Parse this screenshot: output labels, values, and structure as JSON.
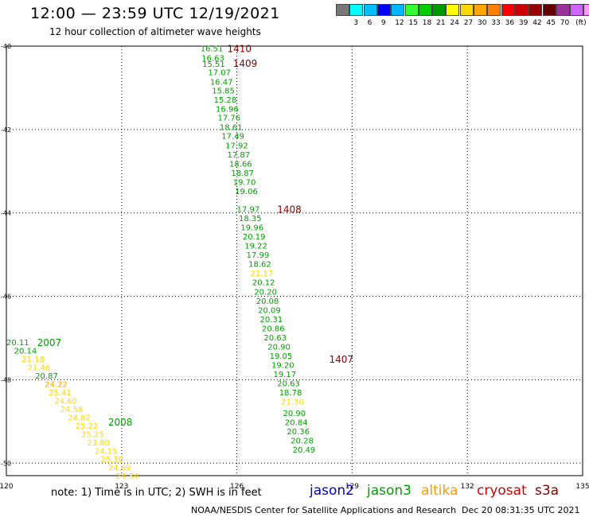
{
  "header": {
    "title": "12:00 — 23:59 UTC 12/19/2021",
    "subtitle": "12 hour collection of altimeter wave heights"
  },
  "colorbar": {
    "unit": "(ft)",
    "colors": [
      "#777777",
      "#00ffff",
      "#00bfff",
      "#0000ff",
      "#00b7ff",
      "#33ff33",
      "#00cc00",
      "#009900",
      "#ffff00",
      "#ffd700",
      "#ffa500",
      "#ff7f00",
      "#ff0000",
      "#cc0000",
      "#990000",
      "#660000",
      "#993399",
      "#cc66ff",
      "#ff99ff",
      "#000000"
    ],
    "labels": [
      "3",
      "6",
      "9",
      "12",
      "15",
      "18",
      "21",
      "24",
      "27",
      "30",
      "33",
      "36",
      "39",
      "42",
      "45",
      "70"
    ]
  },
  "footer": {
    "note": "note: 1) Time is in UTC; 2) SWH is in feet",
    "credit": "NOAA/NESDIS Center for Satellite Applications and Research",
    "timestamp": "Dec 20 08:31:35 UTC 2021"
  },
  "satellites": [
    {
      "name": "jason2",
      "color": "#0000cc"
    },
    {
      "name": "jason3",
      "color": "#00a000"
    },
    {
      "name": "altika",
      "color": "#ff9900"
    },
    {
      "name": "cryosat",
      "color": "#cc0000"
    },
    {
      "name": "s3a",
      "color": "#880000"
    }
  ],
  "chart_data": {
    "type": "scatter",
    "x_ticks": [
      "120",
      "123",
      "126",
      "129",
      "132",
      "135"
    ],
    "y_ticks": [
      "-40",
      "-42",
      "-44",
      "-46",
      "-48",
      "-50"
    ],
    "xlim": [
      120,
      135
    ],
    "ylim": [
      -50.3,
      -40
    ],
    "grid": true,
    "time_labels": [
      {
        "text": "1410",
        "lon": 125.75,
        "lat": -40.05,
        "color": "#880000"
      },
      {
        "text": "1409",
        "lon": 125.9,
        "lat": -40.4,
        "color": "#880000"
      },
      {
        "text": "1408",
        "lon": 127.05,
        "lat": -43.9,
        "color": "#880000"
      },
      {
        "text": "1407",
        "lon": 128.4,
        "lat": -47.5,
        "color": "#880000"
      },
      {
        "text": "2007",
        "lon": 120.8,
        "lat": -47.1,
        "color": "#00a000"
      },
      {
        "text": "2008",
        "lon": 122.65,
        "lat": -49.0,
        "color": "#00a000"
      }
    ],
    "tracks": [
      {
        "pass": "1407-1410",
        "points": [
          {
            "lon": 125.05,
            "lat": -40.05,
            "value": "16.51",
            "color": "#00a000"
          },
          {
            "lon": 125.08,
            "lat": -40.28,
            "value": "16.63",
            "color": "#00a000"
          },
          {
            "lon": 125.1,
            "lat": -40.42,
            "value": "15.51",
            "color": "#00a000"
          },
          {
            "lon": 125.25,
            "lat": -40.62,
            "value": "17.07",
            "color": "#00a000"
          },
          {
            "lon": 125.3,
            "lat": -40.85,
            "value": "16.47",
            "color": "#00a000"
          },
          {
            "lon": 125.35,
            "lat": -41.06,
            "value": "15.85",
            "color": "#00a000"
          },
          {
            "lon": 125.4,
            "lat": -41.28,
            "value": "15.28",
            "color": "#00a000"
          },
          {
            "lon": 125.45,
            "lat": -41.5,
            "value": "16.96",
            "color": "#00a000"
          },
          {
            "lon": 125.5,
            "lat": -41.71,
            "value": "17.76",
            "color": "#00a000"
          },
          {
            "lon": 125.55,
            "lat": -41.94,
            "value": "18.61",
            "color": "#00a000"
          },
          {
            "lon": 125.6,
            "lat": -42.15,
            "value": "17.49",
            "color": "#00a000"
          },
          {
            "lon": 125.7,
            "lat": -42.37,
            "value": "17.92",
            "color": "#00a000"
          },
          {
            "lon": 125.75,
            "lat": -42.59,
            "value": "17.87",
            "color": "#00a000"
          },
          {
            "lon": 125.8,
            "lat": -42.81,
            "value": "18.66",
            "color": "#00a000"
          },
          {
            "lon": 125.85,
            "lat": -43.03,
            "value": "18.87",
            "color": "#00a000"
          },
          {
            "lon": 125.9,
            "lat": -43.25,
            "value": "19.70",
            "color": "#00a000"
          },
          {
            "lon": 125.95,
            "lat": -43.47,
            "value": "19.06",
            "color": "#00a000"
          },
          {
            "lon": 126.0,
            "lat": -43.9,
            "value": "17.97",
            "color": "#00a000"
          },
          {
            "lon": 126.05,
            "lat": -44.12,
            "value": "18.35",
            "color": "#00a000"
          },
          {
            "lon": 126.1,
            "lat": -44.34,
            "value": "19.96",
            "color": "#00a000"
          },
          {
            "lon": 126.15,
            "lat": -44.56,
            "value": "20.19",
            "color": "#00a000"
          },
          {
            "lon": 126.2,
            "lat": -44.78,
            "value": "19.22",
            "color": "#00a000"
          },
          {
            "lon": 126.25,
            "lat": -45.0,
            "value": "17.99",
            "color": "#00a000"
          },
          {
            "lon": 126.3,
            "lat": -45.22,
            "value": "18.62",
            "color": "#00a000"
          },
          {
            "lon": 126.35,
            "lat": -45.44,
            "value": "21.17",
            "color": "#ffd700"
          },
          {
            "lon": 126.4,
            "lat": -45.66,
            "value": "20.12",
            "color": "#00a000"
          },
          {
            "lon": 126.45,
            "lat": -45.88,
            "value": "20.20",
            "color": "#00a000"
          },
          {
            "lon": 126.5,
            "lat": -46.1,
            "value": "20.08",
            "color": "#00a000"
          },
          {
            "lon": 126.55,
            "lat": -46.32,
            "value": "20.09",
            "color": "#00a000"
          },
          {
            "lon": 126.6,
            "lat": -46.54,
            "value": "20.31",
            "color": "#00a000"
          },
          {
            "lon": 126.65,
            "lat": -46.76,
            "value": "20.86",
            "color": "#00a000"
          },
          {
            "lon": 126.7,
            "lat": -46.98,
            "value": "20.63",
            "color": "#00a000"
          },
          {
            "lon": 126.8,
            "lat": -47.2,
            "value": "20.90",
            "color": "#00a000"
          },
          {
            "lon": 126.85,
            "lat": -47.42,
            "value": "19.05",
            "color": "#00a000"
          },
          {
            "lon": 126.9,
            "lat": -47.64,
            "value": "19.20",
            "color": "#00a000"
          },
          {
            "lon": 126.95,
            "lat": -47.86,
            "value": "19.17",
            "color": "#00a000"
          },
          {
            "lon": 127.05,
            "lat": -48.08,
            "value": "20.63",
            "color": "#00a000"
          },
          {
            "lon": 127.1,
            "lat": -48.3,
            "value": "18.78",
            "color": "#00a000"
          },
          {
            "lon": 127.15,
            "lat": -48.52,
            "value": "21.30",
            "color": "#ffd700"
          },
          {
            "lon": 127.2,
            "lat": -48.79,
            "value": "20.90",
            "color": "#00a000"
          },
          {
            "lon": 127.25,
            "lat": -49.01,
            "value": "20.84",
            "color": "#00a000"
          },
          {
            "lon": 127.3,
            "lat": -49.23,
            "value": "20.36",
            "color": "#00a000"
          },
          {
            "lon": 127.4,
            "lat": -49.45,
            "value": "20.28",
            "color": "#00a000"
          },
          {
            "lon": 127.45,
            "lat": -49.67,
            "value": "20.49",
            "color": "#00a000"
          }
        ]
      },
      {
        "pass": "2007-2008",
        "points": [
          {
            "lon": 120.0,
            "lat": -47.1,
            "value": "20.11",
            "color": "#00a000"
          },
          {
            "lon": 120.2,
            "lat": -47.3,
            "value": "20.14",
            "color": "#00a000"
          },
          {
            "lon": 120.4,
            "lat": -47.5,
            "value": "21.18",
            "color": "#ffd700"
          },
          {
            "lon": 120.55,
            "lat": -47.7,
            "value": "21.46",
            "color": "#ffd700"
          },
          {
            "lon": 120.75,
            "lat": -47.9,
            "value": "20.87",
            "color": "#00a000"
          },
          {
            "lon": 121.0,
            "lat": -48.1,
            "value": "24.22",
            "color": "#ffa500"
          },
          {
            "lon": 121.1,
            "lat": -48.3,
            "value": "25.41",
            "color": "#ffd700"
          },
          {
            "lon": 121.25,
            "lat": -48.5,
            "value": "24.60",
            "color": "#ffd700"
          },
          {
            "lon": 121.4,
            "lat": -48.7,
            "value": "24.58",
            "color": "#ffd700"
          },
          {
            "lon": 121.6,
            "lat": -48.9,
            "value": "24.82",
            "color": "#ffd700"
          },
          {
            "lon": 121.8,
            "lat": -49.1,
            "value": "25.22",
            "color": "#ffd700"
          },
          {
            "lon": 121.95,
            "lat": -49.3,
            "value": "25.25",
            "color": "#ffd700"
          },
          {
            "lon": 122.1,
            "lat": -49.5,
            "value": "23.80",
            "color": "#ffd700"
          },
          {
            "lon": 122.3,
            "lat": -49.7,
            "value": "24.15",
            "color": "#ffd700"
          },
          {
            "lon": 122.45,
            "lat": -49.9,
            "value": "25.30",
            "color": "#ffd700"
          },
          {
            "lon": 122.65,
            "lat": -50.1,
            "value": "24.69",
            "color": "#ffd700"
          },
          {
            "lon": 122.85,
            "lat": -50.3,
            "value": "24.34",
            "color": "#ffd700"
          }
        ]
      }
    ]
  }
}
